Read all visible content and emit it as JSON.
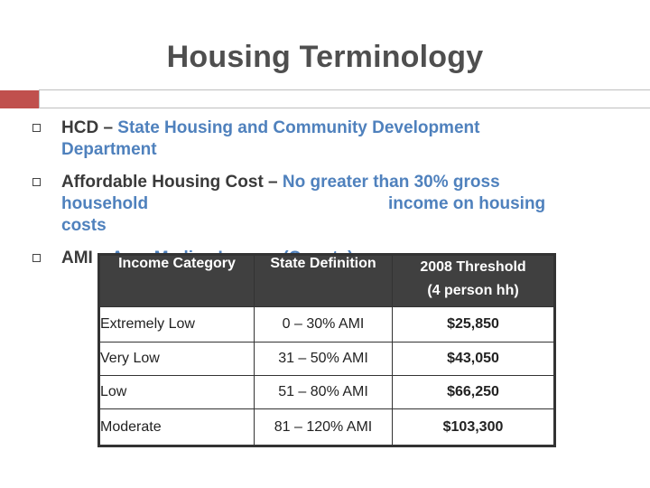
{
  "slide": {
    "title": "Housing Terminology",
    "accent_color": "#c0504d",
    "definition_color": "#4f81bd"
  },
  "bullets": [
    {
      "term": "HCD",
      "separator": " – ",
      "definition": "State Housing and Community Development Department"
    },
    {
      "term": "Affordable Housing Cost",
      "separator": " – ",
      "definition_line1": "No greater than 30% gross",
      "definition_line2a": "household",
      "definition_line2b": "income on housing",
      "definition_line3": "costs"
    },
    {
      "term": "AMI",
      "separator": " – ",
      "definition": "Area Median Income (County)"
    }
  ],
  "table": {
    "headers": [
      "Income Category",
      "State Definition",
      "2008 Threshold",
      "(4 person hh)"
    ],
    "rows": [
      [
        "Extremely  Low",
        "0 – 30% AMI",
        "$25,850"
      ],
      [
        "Very Low",
        "31 – 50% AMI",
        "$43,050"
      ],
      [
        "Low",
        "51 – 80% AMI",
        "$66,250"
      ],
      [
        "Moderate",
        "81 – 120% AMI",
        "$103,300"
      ]
    ]
  }
}
